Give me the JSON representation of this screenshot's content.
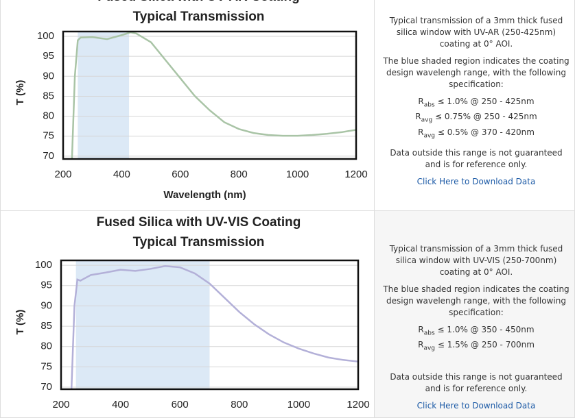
{
  "chart_data": [
    {
      "type": "line",
      "title": "Fused Silica with UV-AR Coating",
      "subtitle": "Typical Transmission",
      "x_label": "Wavelength (nm)",
      "y_label": "T (%)",
      "x": [
        230,
        240,
        250,
        260,
        300,
        350,
        400,
        430,
        450,
        500,
        550,
        600,
        650,
        700,
        750,
        800,
        850,
        900,
        950,
        1000,
        1050,
        1100,
        1150,
        1200
      ],
      "series": [
        {
          "color": "#a9c4a6",
          "values": [
            69,
            90,
            99,
            99.7,
            99.8,
            99.3,
            100.3,
            101,
            100.7,
            98.5,
            94,
            89.5,
            85,
            81.5,
            78.5,
            76.8,
            75.8,
            75.3,
            75.1,
            75.1,
            75.3,
            75.6,
            76,
            76.6
          ]
        }
      ],
      "xlim": [
        200,
        1200
      ],
      "xticks": [
        200,
        400,
        600,
        800,
        1000,
        1200
      ],
      "ylim": [
        69.3,
        101.2
      ],
      "yticks": [
        70,
        75,
        80,
        85,
        90,
        95,
        100
      ],
      "grid": true,
      "shaded_range": [
        250,
        425
      ],
      "shaded_color": "#dce9f6"
    },
    {
      "type": "line",
      "title": "Fused Silica with UV-VIS Coating",
      "subtitle": "Typical Transmission",
      "y_label": "T (%)",
      "x": [
        235,
        245,
        255,
        265,
        280,
        300,
        350,
        400,
        450,
        500,
        550,
        600,
        650,
        700,
        750,
        800,
        850,
        900,
        950,
        1000,
        1050,
        1100,
        1150,
        1200
      ],
      "series": [
        {
          "color": "#b3b0d8",
          "values": [
            69.5,
            90,
            96.5,
            96.2,
            96.8,
            97.6,
            98.2,
            98.9,
            98.6,
            99.1,
            99.8,
            99.5,
            98,
            95.5,
            92,
            88.5,
            85.5,
            83,
            81,
            79.5,
            78.3,
            77.3,
            76.7,
            76.3
          ]
        }
      ],
      "xlim": [
        200,
        1200
      ],
      "xticks": [
        200,
        400,
        600,
        800,
        1000,
        1200
      ],
      "ylim": [
        69.5,
        101.2
      ],
      "yticks": [
        70,
        75,
        80,
        85,
        90,
        95,
        100
      ],
      "grid": true,
      "shaded_range": [
        250,
        700
      ],
      "shaded_color": "#dce9f6"
    }
  ],
  "panels": [
    {
      "description": "Typical transmission of a 3mm thick fused silica window with UV-AR (250-425nm) coating at 0° AOI.",
      "shading_note": "The blue shaded region indicates the coating design wavelengh range, with the following specification:",
      "specs": [
        {
          "symbol": "R",
          "subscript": "abs",
          "text": "≤ 1.0% @ 250 - 425nm"
        },
        {
          "symbol": "R",
          "subscript": "avg",
          "text": "≤ 0.75% @ 250 - 425nm"
        },
        {
          "symbol": "R",
          "subscript": "avg",
          "text": "≤ 0.5% @ 370 - 420nm"
        }
      ],
      "note": "Data outside this range is not guaranteed and is for reference only.",
      "link": "Click Here to Download Data"
    },
    {
      "description": "Typical transmission of a 3mm thick fused silica window with UV-VIS (250-700nm) coating at 0° AOI.",
      "shading_note": "The blue shaded region indicates the coating design wavelengh range, with the following specification:",
      "specs": [
        {
          "symbol": "R",
          "subscript": "abs",
          "text": "≤ 1.0% @ 350 - 450nm"
        },
        {
          "symbol": "R",
          "subscript": "avg",
          "text": "≤ 1.5% @ 250 - 700nm"
        }
      ],
      "note": "Data outside this range is not guaranteed and is for reference only.",
      "link": "Click Here to Download Data"
    }
  ]
}
